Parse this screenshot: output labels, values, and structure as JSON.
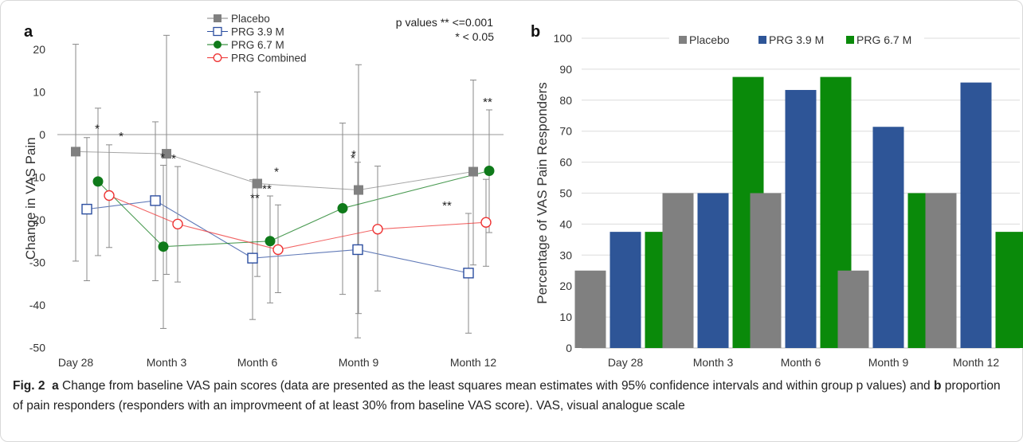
{
  "chart_data": [
    {
      "panel_label": "a",
      "type": "line",
      "ylabel": "Change in VAS Pain",
      "ylim": [
        -50,
        20
      ],
      "yticks": [
        20,
        10,
        0,
        -10,
        -20,
        -30,
        -40,
        -50
      ],
      "categories": [
        "Day 28",
        "Month 3",
        "Month 6",
        "Month 9",
        "Month 12"
      ],
      "legend_placement": "top-center",
      "annotation": [
        "p values ** <=0.001",
        "* <  0.05"
      ],
      "series": [
        {
          "name": "Placebo",
          "color": "#808080",
          "marker": "square-filled",
          "values": [
            -4,
            -4.5,
            -11.5,
            -13,
            -8.7
          ],
          "ci_upper": [
            21.2,
            23.3,
            10,
            16.4,
            12.8
          ],
          "ci_lower": [
            -29.7,
            -32.8,
            -33.3,
            -42,
            -30.6
          ],
          "stars": [
            "",
            "",
            "",
            "",
            ""
          ]
        },
        {
          "name": "PRG 3.9 M",
          "color": "#2c4ea0",
          "marker": "square-open",
          "values": [
            -17.5,
            -15.5,
            -29,
            -27,
            -32.5
          ],
          "ci_upper": [
            -0.7,
            3,
            -10.6,
            -6.5,
            -18.5
          ],
          "ci_lower": [
            -34.3,
            -34.3,
            -43.4,
            -47.7,
            -46.6
          ],
          "stars": [
            "*",
            "",
            "*",
            "*",
            "**"
          ]
        },
        {
          "name": "PRG 6.7 M",
          "color": "#0f7a1a",
          "marker": "circle-filled",
          "values": [
            -11,
            -26.3,
            -25,
            -17.3,
            -8.5
          ],
          "ci_upper": [
            6.2,
            -7.2,
            -14.4,
            2.7,
            5.8
          ],
          "ci_lower": [
            -28.4,
            -45.5,
            -39.5,
            -37.5,
            -23
          ],
          "stars": [
            "",
            "*",
            "**",
            "",
            "**"
          ]
        },
        {
          "name": "PRG Combined",
          "color": "#ee3333",
          "marker": "circle-open",
          "values": [
            -14.3,
            -21,
            -27,
            -22.2,
            -20.6
          ],
          "ci_upper": [
            -2.4,
            -7.5,
            -16.5,
            -7.4,
            -10.5
          ],
          "ci_lower": [
            -26.5,
            -34.6,
            -37.1,
            -36.7,
            -30.9
          ],
          "stars": [
            "*",
            "*",
            "**",
            "*",
            ""
          ]
        }
      ]
    },
    {
      "panel_label": "b",
      "type": "bar",
      "ylabel": "Percentage of VAS Pain Responders",
      "ylim": [
        0,
        100
      ],
      "yticks": [
        0,
        10,
        20,
        30,
        40,
        50,
        60,
        70,
        80,
        90,
        100
      ],
      "categories": [
        "Day 28",
        "Month 3",
        "Month 6",
        "Month 9",
        "Month 12"
      ],
      "legend_placement": "top",
      "grid": true,
      "series": [
        {
          "name": "Placebo",
          "color": "#808080",
          "values": [
            25,
            50,
            50,
            25,
            50
          ]
        },
        {
          "name": "PRG 3.9 M",
          "color": "#2e5597",
          "values": [
            37.5,
            50,
            83.3,
            71.4,
            85.7
          ]
        },
        {
          "name": "PRG 6.7 M",
          "color": "#0a8a0a",
          "values": [
            37.5,
            87.5,
            87.5,
            50,
            37.5
          ]
        }
      ]
    }
  ],
  "caption": {
    "figure_label": "Fig. 2",
    "part_a_label": "a",
    "part_a_text": " Change from baseline VAS pain scores (data are presented as the least squares mean estimates with 95% confidence intervals and within group p values) and ",
    "part_b_label": "b",
    "part_b_text": " proportion of pain responders (responders with an improvmeent of at least 30% from baseline VAS score). VAS, visual analogue scale"
  }
}
